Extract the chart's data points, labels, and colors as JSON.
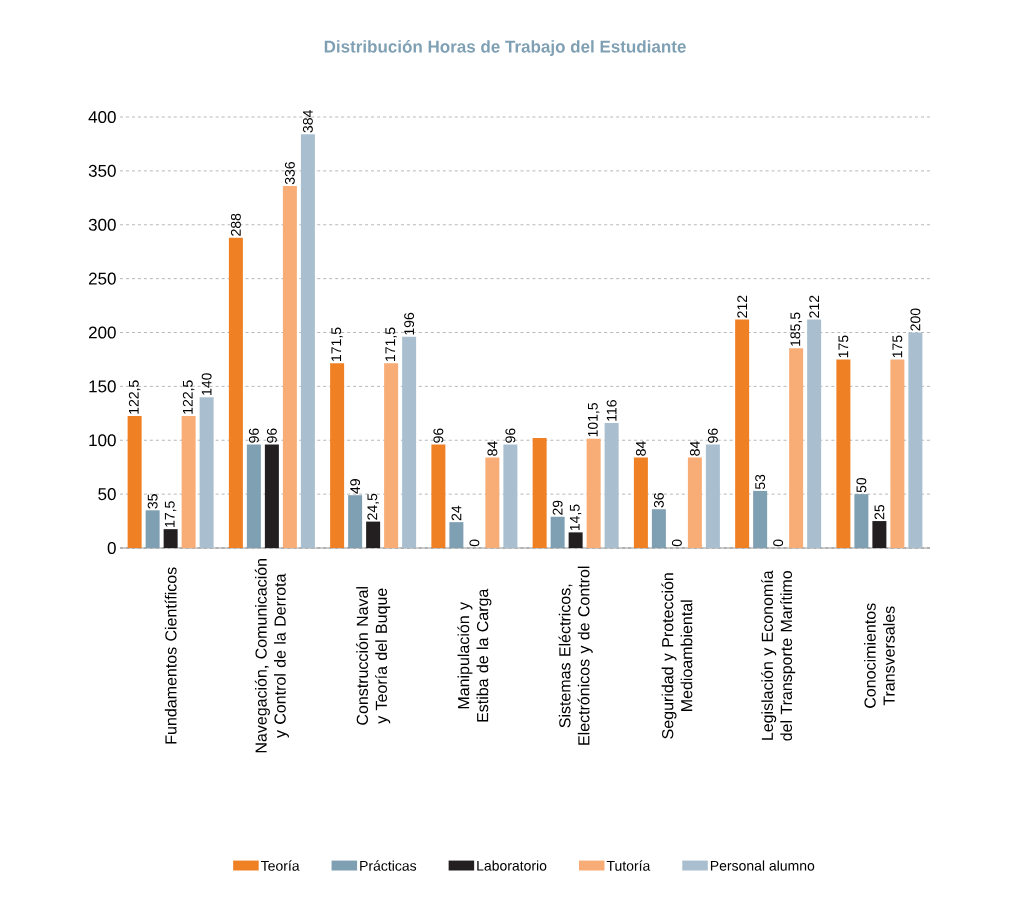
{
  "chart_data": {
    "type": "bar",
    "title": "Distribución Horas de Trabajo del Estudiante",
    "categories": [
      "Fundamentos Científicos",
      "Navegación, Comunicación y Control de la Derrota",
      "Construcción Naval y Teoría del Buque",
      "Manipulación y Estiba de la Carga",
      "Sistemas Eléctricos, Electrónicos y de Control",
      "Seguridad y Protección Medioambiental",
      "Legislación y Economía del Transporte Marítimo",
      "Conocimientos Transversales"
    ],
    "series": [
      {
        "name": "Teoría",
        "color": "#f08024",
        "values": [
          122.5,
          288,
          171.5,
          96,
          102,
          84,
          212,
          175
        ],
        "value_labels": [
          "122,5",
          "288",
          "171,5",
          "96",
          null,
          "84",
          "212",
          "175"
        ]
      },
      {
        "name": "Prácticas",
        "color": "#7f9fb3",
        "values": [
          35,
          96,
          49,
          24,
          29,
          36,
          53,
          50
        ],
        "value_labels": [
          "35",
          "96",
          "49",
          "24",
          "29",
          "36",
          "53",
          "50"
        ]
      },
      {
        "name": "Laboratorio",
        "color": "#231f20",
        "values": [
          17.5,
          96,
          24.5,
          0,
          14.5,
          0,
          0,
          25
        ],
        "value_labels": [
          "17,5",
          "96",
          "24,5",
          "0",
          "14,5",
          "0",
          "0",
          "25"
        ]
      },
      {
        "name": "Tutoría",
        "color": "#f9ad76",
        "values": [
          122.5,
          336,
          171.5,
          84,
          101.5,
          84,
          185.5,
          175
        ],
        "value_labels": [
          "122,5",
          "336",
          "171,5",
          "84",
          "101,5",
          "84",
          "185,5",
          "175"
        ]
      },
      {
        "name": "Personal alumno",
        "color": "#a9bfcf",
        "values": [
          140,
          384,
          196,
          96,
          116,
          96,
          212,
          200
        ],
        "value_labels": [
          "140",
          "384",
          "196",
          "96",
          "116",
          "96",
          "212",
          "200"
        ]
      }
    ],
    "ylim": [
      0,
      400
    ],
    "yticks": [
      0,
      50,
      100,
      150,
      200,
      250,
      300,
      350,
      400
    ],
    "grid": "y",
    "legend": "bottom"
  }
}
